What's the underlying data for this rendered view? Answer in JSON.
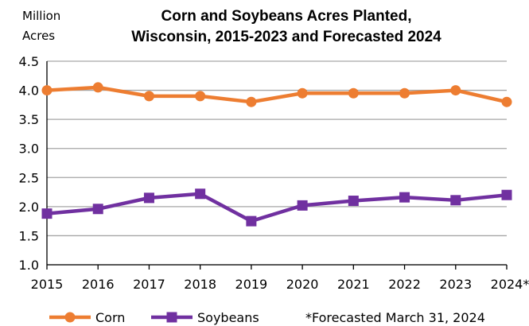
{
  "chart_data": {
    "type": "line",
    "title_lines": [
      "Corn and Soybeans Acres Planted,",
      "Wisconsin, 2015-2023 and Forecasted 2024"
    ],
    "ylabel_lines": [
      "Million",
      "Acres"
    ],
    "categories": [
      "2015",
      "2016",
      "2017",
      "2018",
      "2019",
      "2020",
      "2021",
      "2022",
      "2023",
      "2024*"
    ],
    "y_ticks": [
      "1.0",
      "1.5",
      "2.0",
      "2.5",
      "3.0",
      "3.5",
      "4.0",
      "4.5"
    ],
    "ylim": [
      1.0,
      4.5
    ],
    "grid": true,
    "series": [
      {
        "name": "Corn",
        "color": "#ED7D31",
        "marker": "circle",
        "values": [
          4.0,
          4.05,
          3.9,
          3.9,
          3.8,
          3.95,
          3.95,
          3.95,
          4.0,
          3.8
        ]
      },
      {
        "name": "Soybeans",
        "color": "#7030A0",
        "marker": "square",
        "values": [
          1.88,
          1.96,
          2.15,
          2.22,
          1.75,
          2.02,
          2.1,
          2.16,
          2.11,
          2.2
        ]
      }
    ],
    "legend_position": "bottom",
    "footnote": "*Forecasted March 31, 2024"
  }
}
